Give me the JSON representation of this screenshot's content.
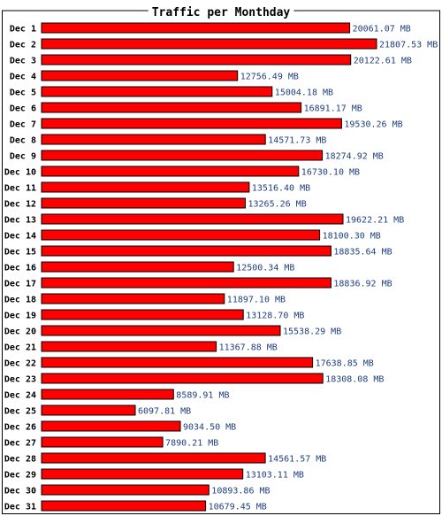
{
  "chart_data": {
    "type": "bar",
    "orientation": "horizontal",
    "title": "Traffic per Monthday",
    "unit": "MB",
    "bar_color": "#ff0000",
    "label_color": "#1f3f7f",
    "categories": [
      "Dec 1",
      "Dec 2",
      "Dec 3",
      "Dec 4",
      "Dec 5",
      "Dec 6",
      "Dec 7",
      "Dec 8",
      "Dec 9",
      "Dec 10",
      "Dec 11",
      "Dec 12",
      "Dec 13",
      "Dec 14",
      "Dec 15",
      "Dec 16",
      "Dec 17",
      "Dec 18",
      "Dec 19",
      "Dec 20",
      "Dec 21",
      "Dec 22",
      "Dec 23",
      "Dec 24",
      "Dec 25",
      "Dec 26",
      "Dec 27",
      "Dec 28",
      "Dec 29",
      "Dec 30",
      "Dec 31"
    ],
    "values": [
      20061.07,
      21807.53,
      20122.61,
      12756.49,
      15004.18,
      16891.17,
      19530.26,
      14571.73,
      18274.92,
      16730.1,
      13516.4,
      13265.26,
      19622.21,
      18100.3,
      18835.64,
      12500.34,
      18836.92,
      11897.1,
      13128.7,
      15538.29,
      11367.88,
      17638.85,
      18308.08,
      8589.91,
      6097.81,
      9034.5,
      7890.21,
      14561.57,
      13103.11,
      10893.86,
      10679.45
    ],
    "value_labels": [
      "20061.07 MB",
      "21807.53 MB",
      "20122.61 MB",
      "12756.49 MB",
      "15004.18 MB",
      "16891.17 MB",
      "19530.26 MB",
      "14571.73 MB",
      "18274.92 MB",
      "16730.10 MB",
      "13516.40 MB",
      "13265.26 MB",
      "19622.21 MB",
      "18100.30 MB",
      "18835.64 MB",
      "12500.34 MB",
      "18836.92 MB",
      "11897.10 MB",
      "13128.70 MB",
      "15538.29 MB",
      "11367.88 MB",
      "17638.85 MB",
      "18308.08 MB",
      "8589.91 MB",
      "6097.81 MB",
      "9034.50 MB",
      "7890.21 MB",
      "14561.57 MB",
      "13103.11 MB",
      "10893.86 MB",
      "10679.45 MB"
    ]
  }
}
